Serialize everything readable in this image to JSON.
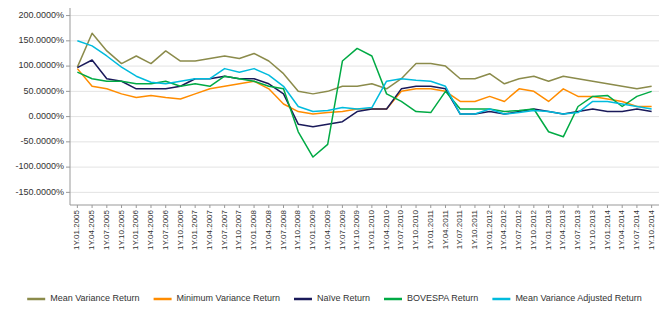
{
  "chart_data": {
    "type": "line",
    "categories": [
      "1Y.01.2005",
      "1Y.04.2005",
      "1Y.07.2005",
      "1Y.10.2005",
      "1Y.01.2006",
      "1Y.04.2006",
      "1Y.07.2006",
      "1Y.10.2006",
      "1Y.01.2007",
      "1Y.04.2007",
      "1Y.07.2007",
      "1Y.10.2007",
      "1Y.01.2008",
      "1Y.04.2008",
      "1Y.07.2008",
      "1Y.10.2008",
      "1Y.01.2009",
      "1Y.04.2009",
      "1Y.07.2009",
      "1Y.10.2009",
      "1Y.01.2010",
      "1Y.04.2010",
      "1Y.07.2010",
      "1Y.10.2010",
      "1Y.01.2011",
      "1Y.04.2011",
      "1Y.07.2011",
      "1Y.10.2011",
      "1Y.01.2012",
      "1Y.04.2012",
      "1Y.07.2012",
      "1Y.10.2012",
      "1Y.01.2013",
      "1Y.04.2013",
      "1Y.07.2013",
      "1Y.10.2013",
      "1Y.01.2014",
      "1Y.04.2014",
      "1Y.07.2014",
      "1Y.10.2014"
    ],
    "series": [
      {
        "name": "Mean Variance Return",
        "color": "#8B8B4B",
        "values": [
          98,
          165,
          130,
          105,
          120,
          105,
          130,
          110,
          110,
          115,
          120,
          115,
          125,
          110,
          85,
          50,
          45,
          50,
          60,
          60,
          65,
          55,
          75,
          105,
          105,
          100,
          75,
          75,
          85,
          65,
          75,
          80,
          70,
          80,
          75,
          70,
          65,
          60,
          55,
          60
        ]
      },
      {
        "name": "Minimum Variance Return",
        "color": "#FF8C00",
        "values": [
          95,
          60,
          55,
          45,
          38,
          42,
          38,
          35,
          45,
          55,
          60,
          65,
          70,
          55,
          25,
          10,
          5,
          8,
          10,
          15,
          15,
          15,
          50,
          55,
          55,
          50,
          30,
          30,
          40,
          30,
          55,
          50,
          30,
          55,
          40,
          40,
          35,
          30,
          20,
          20
        ]
      },
      {
        "name": "Naïve Return",
        "color": "#1a1a5a",
        "values": [
          97,
          112,
          75,
          70,
          55,
          55,
          55,
          60,
          75,
          75,
          80,
          75,
          75,
          65,
          45,
          -15,
          -20,
          -15,
          -10,
          10,
          15,
          15,
          55,
          60,
          60,
          55,
          5,
          5,
          10,
          5,
          10,
          15,
          10,
          5,
          10,
          15,
          10,
          10,
          15,
          10
        ]
      },
      {
        "name": "BOVESPA Return",
        "color": "#00aa44",
        "values": [
          88,
          75,
          70,
          70,
          65,
          65,
          70,
          60,
          65,
          60,
          80,
          75,
          70,
          60,
          55,
          -30,
          -80,
          -55,
          110,
          135,
          120,
          45,
          30,
          10,
          8,
          50,
          15,
          15,
          15,
          10,
          12,
          15,
          -30,
          -40,
          20,
          40,
          42,
          20,
          40,
          50
        ]
      },
      {
        "name": "Mean Variance Adjusted Return",
        "color": "#00bbdd",
        "values": [
          150,
          140,
          120,
          98,
          80,
          68,
          65,
          70,
          75,
          75,
          95,
          88,
          95,
          82,
          60,
          20,
          10,
          12,
          18,
          15,
          18,
          70,
          75,
          72,
          70,
          60,
          5,
          5,
          15,
          5,
          8,
          12,
          10,
          5,
          8,
          30,
          30,
          25,
          20,
          15
        ]
      }
    ],
    "ylim": [
      -175.0,
      215.0
    ],
    "yticks": [
      {
        "value": -150.0,
        "label": "-150.0000%"
      },
      {
        "value": -100.0,
        "label": "-100.0000%"
      },
      {
        "value": -50.0,
        "label": "-50.0000%"
      },
      {
        "value": 0.0,
        "label": "0.0000%"
      },
      {
        "value": 50.0,
        "label": "50.0000%"
      },
      {
        "value": 100.0,
        "label": "100.0000%"
      },
      {
        "value": 150.0,
        "label": "150.0000%"
      },
      {
        "value": 200.0,
        "label": "200.0000%"
      }
    ],
    "grid": true,
    "legend": "bottom"
  }
}
